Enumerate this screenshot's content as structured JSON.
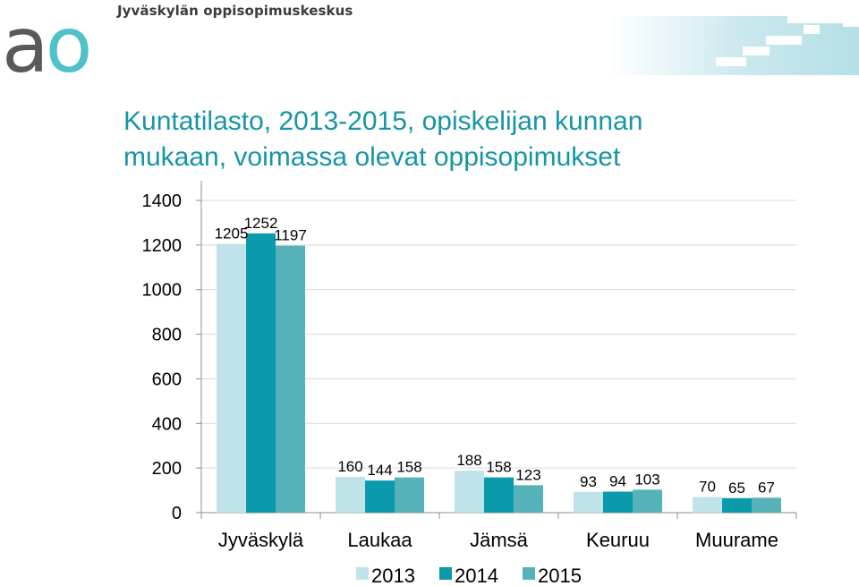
{
  "header": {
    "logo_text": "ao",
    "org_name": "Jyväskylän oppisopimuskeskus",
    "brand_colors": {
      "gray": "#5a5a5a",
      "teal": "#4fc1c8",
      "stairs": "#bfe4ea"
    }
  },
  "slide": {
    "title_lines": [
      "Kuntatilasto, 2013-2015, opiskelijan kunnan",
      "mukaan, voimassa olevat oppisopimukset"
    ]
  },
  "chart_data": {
    "type": "bar",
    "title": "Kuntatilasto, 2013-2015, opiskelijan kunnan mukaan, voimassa olevat oppisopimukset",
    "categories": [
      "Jyväskylä",
      "Laukaa",
      "Jämsä",
      "Keuruu",
      "Muurame"
    ],
    "series": [
      {
        "name": "2013",
        "color": "#bfe3e8",
        "values": [
          1205,
          160,
          188,
          93,
          70
        ]
      },
      {
        "name": "2014",
        "color": "#0a9aab",
        "values": [
          1252,
          144,
          158,
          94,
          65
        ]
      },
      {
        "name": "2015",
        "color": "#56b2b9",
        "values": [
          1197,
          158,
          123,
          103,
          67
        ]
      }
    ],
    "yticks": [
      "0",
      "200",
      "400",
      "600",
      "800",
      "1000",
      "1200",
      "1400"
    ],
    "ylim": [
      0,
      1400
    ],
    "grid": true,
    "legend": "bottom",
    "data_labels": true
  }
}
